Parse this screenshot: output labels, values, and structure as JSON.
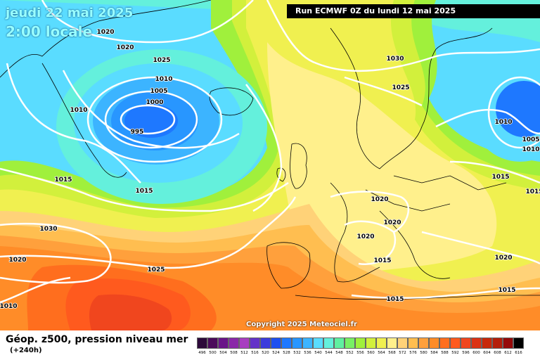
{
  "header": {
    "date": "jeudi 22 mai 2025",
    "local_time": "2:00 locale",
    "run": "Run ECMWF 0Z du lundi 12 mai 2025"
  },
  "copyright": "Copyright 2025 Meteociel.fr",
  "footer": {
    "title": "Géop. z500, pression niveau mer",
    "lead": "(+240h)"
  },
  "legend": {
    "labels": [
      "496",
      "500",
      "504",
      "508",
      "512",
      "516",
      "520",
      "524",
      "528",
      "532",
      "536",
      "540",
      "544",
      "548",
      "552",
      "556",
      "560",
      "564",
      "568",
      "572",
      "576",
      "580",
      "584",
      "588",
      "592",
      "596",
      "600",
      "604",
      "608",
      "612",
      "616"
    ],
    "colors": [
      "#2d0a3a",
      "#4b0a5a",
      "#6a1488",
      "#8a28a8",
      "#a83ec0",
      "#6432c8",
      "#3c3cdc",
      "#1e50f0",
      "#1e78ff",
      "#2896ff",
      "#3cb4ff",
      "#5adcff",
      "#64f0dc",
      "#5ff0a0",
      "#78f064",
      "#a0f03c",
      "#d2f03c",
      "#f0f050",
      "#fff08c",
      "#ffd278",
      "#ffbe50",
      "#ffa03c",
      "#ff8c28",
      "#ff6e1e",
      "#ff5a1e",
      "#f0461e",
      "#dc3214",
      "#c8280a",
      "#b41e0a",
      "#960a0a",
      "#000000"
    ]
  },
  "isobars": [
    "1020",
    "1020",
    "1030",
    "1025",
    "1010",
    "1005",
    "1000",
    "995",
    "1010",
    "1025",
    "1015",
    "1030",
    "1020",
    "1010",
    "1025",
    "1020",
    "1020",
    "1020",
    "1015",
    "1015",
    "1015",
    "1010",
    "1005",
    "1010",
    "1015",
    "1020",
    "1015",
    "1015"
  ]
}
